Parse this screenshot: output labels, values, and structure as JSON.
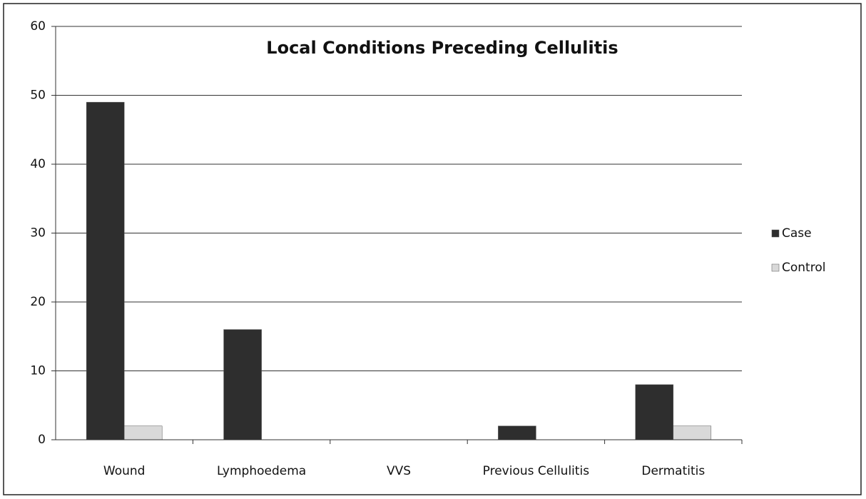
{
  "chart_data": {
    "type": "bar",
    "title": "Local Conditions Preceding Cellulitis",
    "categories": [
      "Wound",
      "Lymphoedema",
      "VVS",
      "Previous Cellulitis",
      "Dermatitis"
    ],
    "series": [
      {
        "name": "Case",
        "color": "#2e2e2e",
        "values": [
          49,
          16,
          0,
          2,
          8
        ]
      },
      {
        "name": "Control",
        "color": "#d9d9d9",
        "values": [
          2,
          0,
          0,
          0,
          2
        ]
      }
    ],
    "ylim": [
      0,
      60
    ],
    "yticks": [
      0,
      10,
      20,
      30,
      40,
      50,
      60
    ],
    "grid": true,
    "legend": "right"
  }
}
